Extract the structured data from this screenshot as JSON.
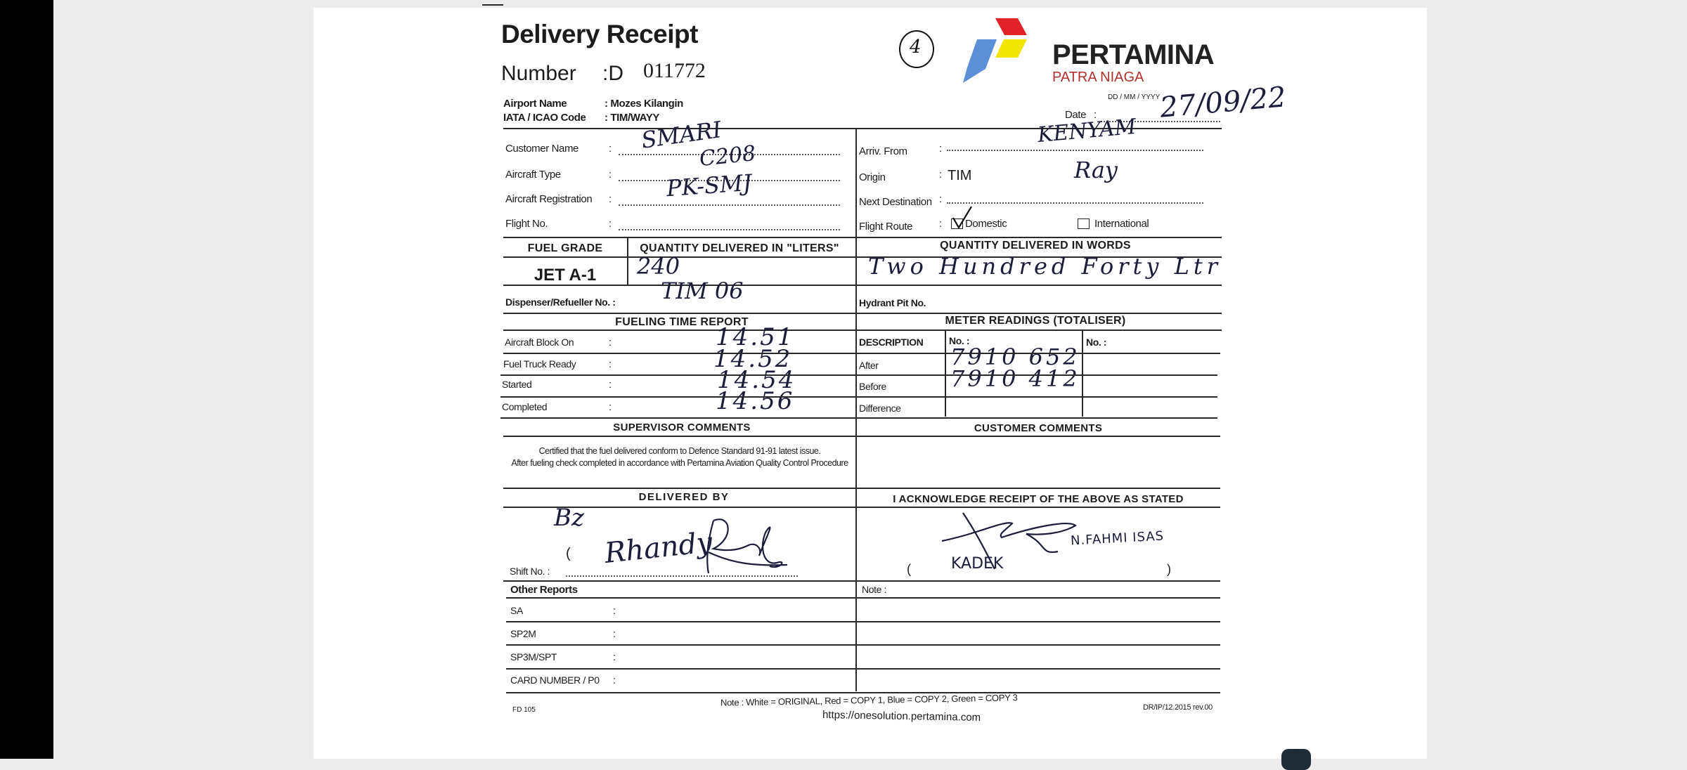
{
  "document": {
    "title": "Delivery Receipt",
    "number_label": "Number",
    "number_prefix": ":D",
    "number_value": "011772",
    "circled_mark": "4",
    "logo": {
      "brand": "PERTAMINA",
      "sub": "PATRA NIAGA",
      "colors": {
        "red": "#e3232a",
        "blue": "#5b8fd6",
        "yellow": "#f2e600",
        "sub_text": "#b0302c"
      }
    },
    "airport_name_label": "Airport Name",
    "airport_name_value": ": Mozes Kilangin",
    "iata_label": "IATA / ICAO Code",
    "iata_value": ": TIM/WAYY",
    "date_label": "Date",
    "date_format": "DD / MM / YYYY",
    "date_value": "27/09/22",
    "left_fields": [
      {
        "label": "Customer Name",
        "value": "SMARI"
      },
      {
        "label": "Aircraft Type",
        "value": "C208"
      },
      {
        "label": "Aircraft Registration",
        "value": "PK-SMJ"
      },
      {
        "label": "Flight No.",
        "value": ""
      }
    ],
    "right_fields": [
      {
        "label": "Arriv. From",
        "value": "KENYAM"
      },
      {
        "label": "Origin",
        "value": "TIM"
      },
      {
        "label": "Next Destination",
        "value": ""
      },
      {
        "label": "Flight Route",
        "value": ""
      }
    ],
    "origin_initials": "Ray",
    "flight_route": {
      "domestic": "Domestic",
      "international": "International",
      "domestic_checked": true,
      "international_checked": false
    },
    "fuel_grade_header": "FUEL GRADE",
    "qty_liters_header": "QUANTITY DELIVERED IN \"LITERS\"",
    "qty_words_header": "QUANTITY DELIVERED IN WORDS",
    "fuel_grade": "JET A-1",
    "qty_liters": "240",
    "qty_words": "Two Hundred Forty Ltr",
    "dispenser_label": "Dispenser/Refueller No.  :",
    "dispenser_value": "TIM 06",
    "hydrant_label": "Hydrant Pit No.",
    "fueling_header": "FUELING TIME REPORT",
    "fueling_rows": [
      {
        "label": "Aircraft Block On",
        "value": "14.51"
      },
      {
        "label": "Fuel Truck Ready",
        "value": "14.52"
      },
      {
        "label": "Started",
        "value": "14.54"
      },
      {
        "label": "Completed",
        "value": "14.56"
      }
    ],
    "meter_header": "METER READINGS (TOTALISER)",
    "meter_desc_header": "DESCRIPTION",
    "meter_no1": "No. :",
    "meter_no2": "No. :",
    "meter_rows": [
      {
        "label": "After",
        "value": "7910 652"
      },
      {
        "label": "Before",
        "value": "7910 412"
      },
      {
        "label": "Difference",
        "value": ""
      }
    ],
    "supervisor_header": "SUPERVISOR  COMMENTS",
    "customer_header": "CUSTOMER  COMMENTS",
    "cert_line1": "Certified that the fuel delivered conform to Defence Standard 91-91 latest issue.",
    "cert_line2": "After fueling check completed in accordance with Pertamina Aviation Quality Control Procedure",
    "delivered_by_header": "DELIVERED BY",
    "acknowledge_header": "I ACKNOWLEDGE RECEIPT OF THE ABOVE AS STATED",
    "delivered_initials": "Bz",
    "delivered_name": "Rhandy",
    "shift_label": "Shift No.  :",
    "receiver_name": "N.FAHMI ISAS",
    "receiver_paren_name": "KADEK",
    "other_reports_header": "Other Reports",
    "note_label": "Note :",
    "other_reports": [
      {
        "label": "SA"
      },
      {
        "label": "SP2M"
      },
      {
        "label": "SP3M/SPT"
      },
      {
        "label": "CARD NUMBER / P0"
      }
    ],
    "copy_note": "Note :   White = ORIGINAL, Red = COPY 1,  Blue = COPY 2,  Green = COPY 3",
    "form_code": "FD 105",
    "url": "https://onesolution.pertamina.com",
    "revision": "DR/IP/12.2015 rev.00"
  }
}
